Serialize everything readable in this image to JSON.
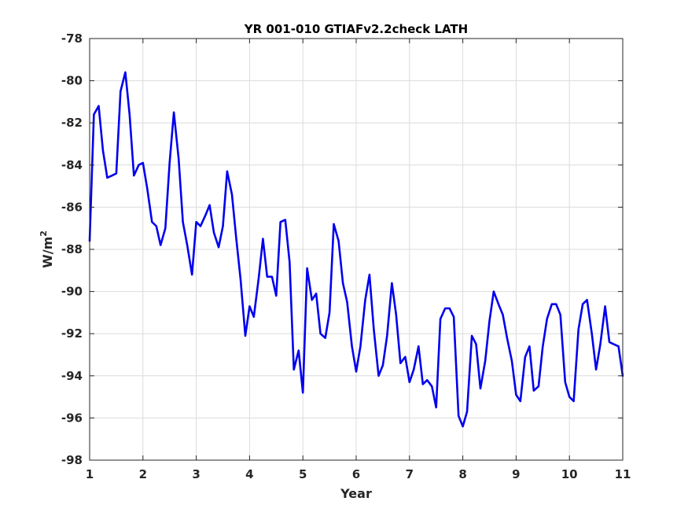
{
  "chart_data": {
    "type": "line",
    "title": "YR 001-010 GTIAFv2.2check LATH",
    "xlabel": "Year",
    "ylabel_base": "W/m",
    "ylabel_sup": "2",
    "xlim": [
      1,
      11
    ],
    "ylim": [
      -98,
      -78
    ],
    "xticks": [
      1,
      2,
      3,
      4,
      5,
      6,
      7,
      8,
      9,
      10,
      11
    ],
    "yticks": [
      -98,
      -96,
      -94,
      -92,
      -90,
      -88,
      -86,
      -84,
      -82,
      -80,
      -78
    ],
    "grid": true,
    "colors": {
      "line": "#0000ee",
      "grid": "#dcdcdc",
      "axis": "#262626"
    },
    "series": [
      {
        "x": [
          1.0,
          1.08,
          1.17,
          1.25,
          1.33,
          1.42,
          1.5,
          1.58,
          1.67,
          1.75,
          1.83,
          1.92,
          2.0,
          2.08,
          2.17,
          2.25,
          2.33,
          2.42,
          2.5,
          2.58,
          2.67,
          2.75,
          2.83,
          2.92,
          3.0,
          3.08,
          3.17,
          3.25,
          3.33,
          3.42,
          3.5,
          3.58,
          3.67,
          3.75,
          3.83,
          3.92,
          4.0,
          4.08,
          4.17,
          4.25,
          4.33,
          4.42,
          4.5,
          4.58,
          4.67,
          4.75,
          4.83,
          4.92,
          5.0,
          5.08,
          5.17,
          5.25,
          5.33,
          5.42,
          5.5,
          5.58,
          5.67,
          5.75,
          5.83,
          5.92,
          6.0,
          6.08,
          6.17,
          6.25,
          6.33,
          6.42,
          6.5,
          6.58,
          6.67,
          6.75,
          6.83,
          6.92,
          7.0,
          7.08,
          7.17,
          7.25,
          7.33,
          7.42,
          7.5,
          7.58,
          7.67,
          7.75,
          7.83,
          7.92,
          8.0,
          8.08,
          8.17,
          8.25,
          8.33,
          8.42,
          8.5,
          8.58,
          8.67,
          8.75,
          8.83,
          8.92,
          9.0,
          9.08,
          9.17,
          9.25,
          9.33,
          9.42,
          9.5,
          9.58,
          9.67,
          9.75,
          9.83,
          9.92,
          10.0,
          10.08,
          10.17,
          10.25,
          10.33,
          10.42,
          10.5,
          10.58,
          10.67,
          10.75,
          10.83,
          10.92,
          11.0
        ],
        "y": [
          -87.6,
          -81.6,
          -81.2,
          -83.3,
          -84.6,
          -84.5,
          -84.4,
          -80.5,
          -79.6,
          -81.6,
          -84.5,
          -84.0,
          -83.9,
          -85.1,
          -86.7,
          -86.9,
          -87.8,
          -87.0,
          -83.9,
          -81.5,
          -83.7,
          -86.7,
          -87.8,
          -89.2,
          -86.7,
          -86.9,
          -86.4,
          -85.9,
          -87.2,
          -87.9,
          -86.9,
          -84.3,
          -85.4,
          -87.5,
          -89.4,
          -92.1,
          -90.7,
          -91.2,
          -89.4,
          -87.5,
          -89.3,
          -89.3,
          -90.2,
          -86.7,
          -86.6,
          -88.6,
          -93.7,
          -92.8,
          -94.8,
          -88.9,
          -90.4,
          -90.1,
          -92.0,
          -92.2,
          -91.0,
          -86.8,
          -87.6,
          -89.6,
          -90.5,
          -92.6,
          -93.8,
          -92.6,
          -90.4,
          -89.2,
          -91.8,
          -94.0,
          -93.5,
          -92.1,
          -89.6,
          -91.1,
          -93.4,
          -93.1,
          -94.3,
          -93.7,
          -92.6,
          -94.4,
          -94.2,
          -94.5,
          -95.5,
          -91.3,
          -90.8,
          -90.8,
          -91.2,
          -95.9,
          -96.4,
          -95.7,
          -92.1,
          -92.5,
          -94.6,
          -93.3,
          -91.4,
          -90.0,
          -90.6,
          -91.1,
          -92.2,
          -93.3,
          -94.9,
          -95.2,
          -93.1,
          -92.6,
          -94.7,
          -94.5,
          -92.6,
          -91.3,
          -90.6,
          -90.6,
          -91.1,
          -94.3,
          -95.0,
          -95.2,
          -91.8,
          -90.6,
          -90.4,
          -92.0,
          -93.7,
          -92.5,
          -90.7,
          -92.4,
          -92.5,
          -92.6,
          -94.0
        ]
      }
    ]
  }
}
